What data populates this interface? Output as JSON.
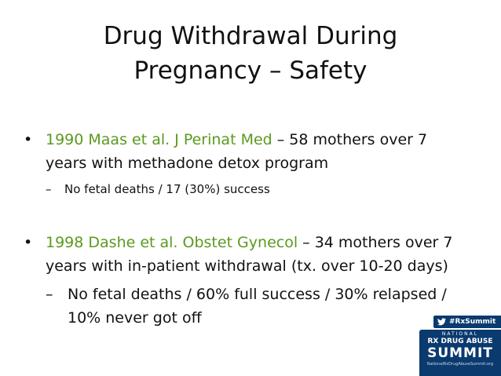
{
  "slide": {
    "title_line1": "Drug Withdrawal During",
    "title_line2": "Pregnancy – Safety",
    "bullet_char": "•",
    "dash_char": "–",
    "bullets": [
      {
        "citation": "1990 Maas et al. J Perinat Med",
        "line1_rest": " – 58 mothers over 7",
        "line2": "years with methadone detox program",
        "sub": [
          "No fetal deaths / 17 (30%) success"
        ]
      },
      {
        "citation": "1998 Dashe et al. Obstet Gynecol",
        "line1_rest": " – 34 mothers over 7",
        "line2": "years with in-patient withdrawal (tx. over 10-20 days)",
        "sub": [
          "No fetal deaths / 60% full success / 30% relapsed /",
          "10% never got off"
        ]
      }
    ],
    "colors": {
      "citation": "#5a9a1e",
      "text": "#111111",
      "logo_bg": "#0a3a6e"
    }
  },
  "logo": {
    "hashtag": "#RxSummit",
    "line_national": "NATIONAL",
    "line_rx": "RX DRUG ABUSE",
    "line_summit": "SUMMIT",
    "line_url": "NationalRxDrugAbuseSummit.org",
    "icon": "twitter-bird-icon"
  }
}
